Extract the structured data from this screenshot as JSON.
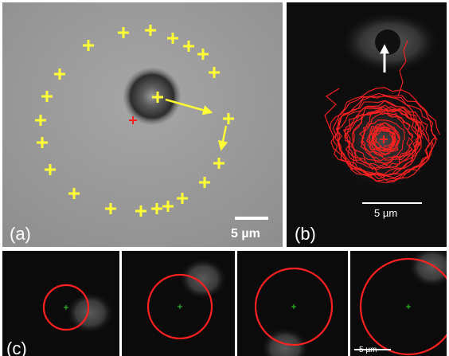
{
  "panel_a": {
    "label": "(a)",
    "scale_bar": "5 µm",
    "background_color": "#9e9e9e",
    "marker_color": "#ffff33",
    "center_marker_color": "#ff2020",
    "arrow_color": "#ffff33"
  },
  "panel_b": {
    "label": "(b)",
    "scale_bar": "5 µm",
    "trajectory_color": "#ff2020",
    "arrow_color": "#ffffff"
  },
  "panel_c": {
    "label": "(c)",
    "scale_bar": "5 µm",
    "ring_color": "#ff2020",
    "center_marker_color": "#33cc33",
    "frames": [
      "frame-1",
      "frame-2",
      "frame-3",
      "frame-4"
    ]
  }
}
